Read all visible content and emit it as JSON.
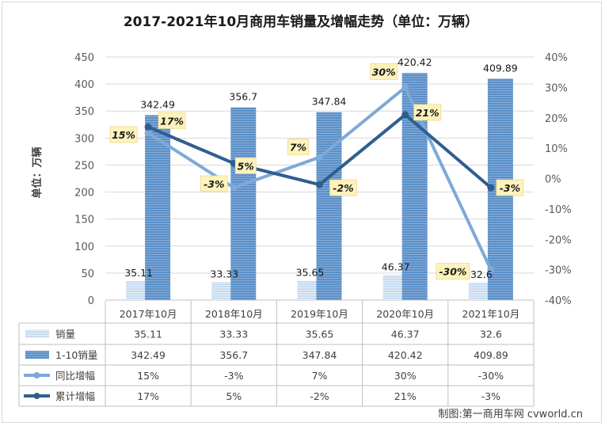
{
  "chart_data": {
    "type": "bar",
    "title": "2017-2021年10月商用车销量及增幅走势（单位：万辆）",
    "ylabel": "单位：万辆",
    "source": "制图:第一商用车网 cvworld.cn",
    "categories": [
      "2017年10月",
      "2018年10月",
      "2019年10月",
      "2020年10月",
      "2021年10月"
    ],
    "ylim": [
      0,
      450
    ],
    "y_ticks": [
      "0",
      "50",
      "100",
      "150",
      "200",
      "250",
      "300",
      "350",
      "400",
      "450"
    ],
    "y2lim": [
      -40,
      40
    ],
    "y2_ticks": [
      "-40%",
      "-30%",
      "-20%",
      "-10%",
      "0%",
      "10%",
      "20%",
      "30%",
      "40%"
    ],
    "series": [
      {
        "name": "销量",
        "kind": "bar",
        "color": "#c5d8ee",
        "values": [
          35.11,
          33.33,
          35.65,
          46.37,
          32.6
        ],
        "labels": [
          "35.11",
          "33.33",
          "35.65",
          "46.37",
          "32.6"
        ]
      },
      {
        "name": "1-10销量",
        "kind": "bar",
        "color": "#5b8fc7",
        "values": [
          342.49,
          356.7,
          347.84,
          420.42,
          409.89
        ],
        "labels": [
          "342.49",
          "356.7",
          "347.84",
          "420.42",
          "409.89"
        ]
      },
      {
        "name": "同比增幅",
        "kind": "line",
        "axis": "right",
        "color": "#7ea9d8",
        "values": [
          15,
          -3,
          7,
          30,
          -30
        ],
        "labels": [
          "15%",
          "-3%",
          "7%",
          "30%",
          "-30%"
        ]
      },
      {
        "name": "累计增幅",
        "kind": "line",
        "axis": "right",
        "color": "#2f5e8e",
        "values": [
          17,
          5,
          -2,
          21,
          -3
        ],
        "labels": [
          "17%",
          "5%",
          "-2%",
          "21%",
          "-3%"
        ]
      }
    ]
  }
}
